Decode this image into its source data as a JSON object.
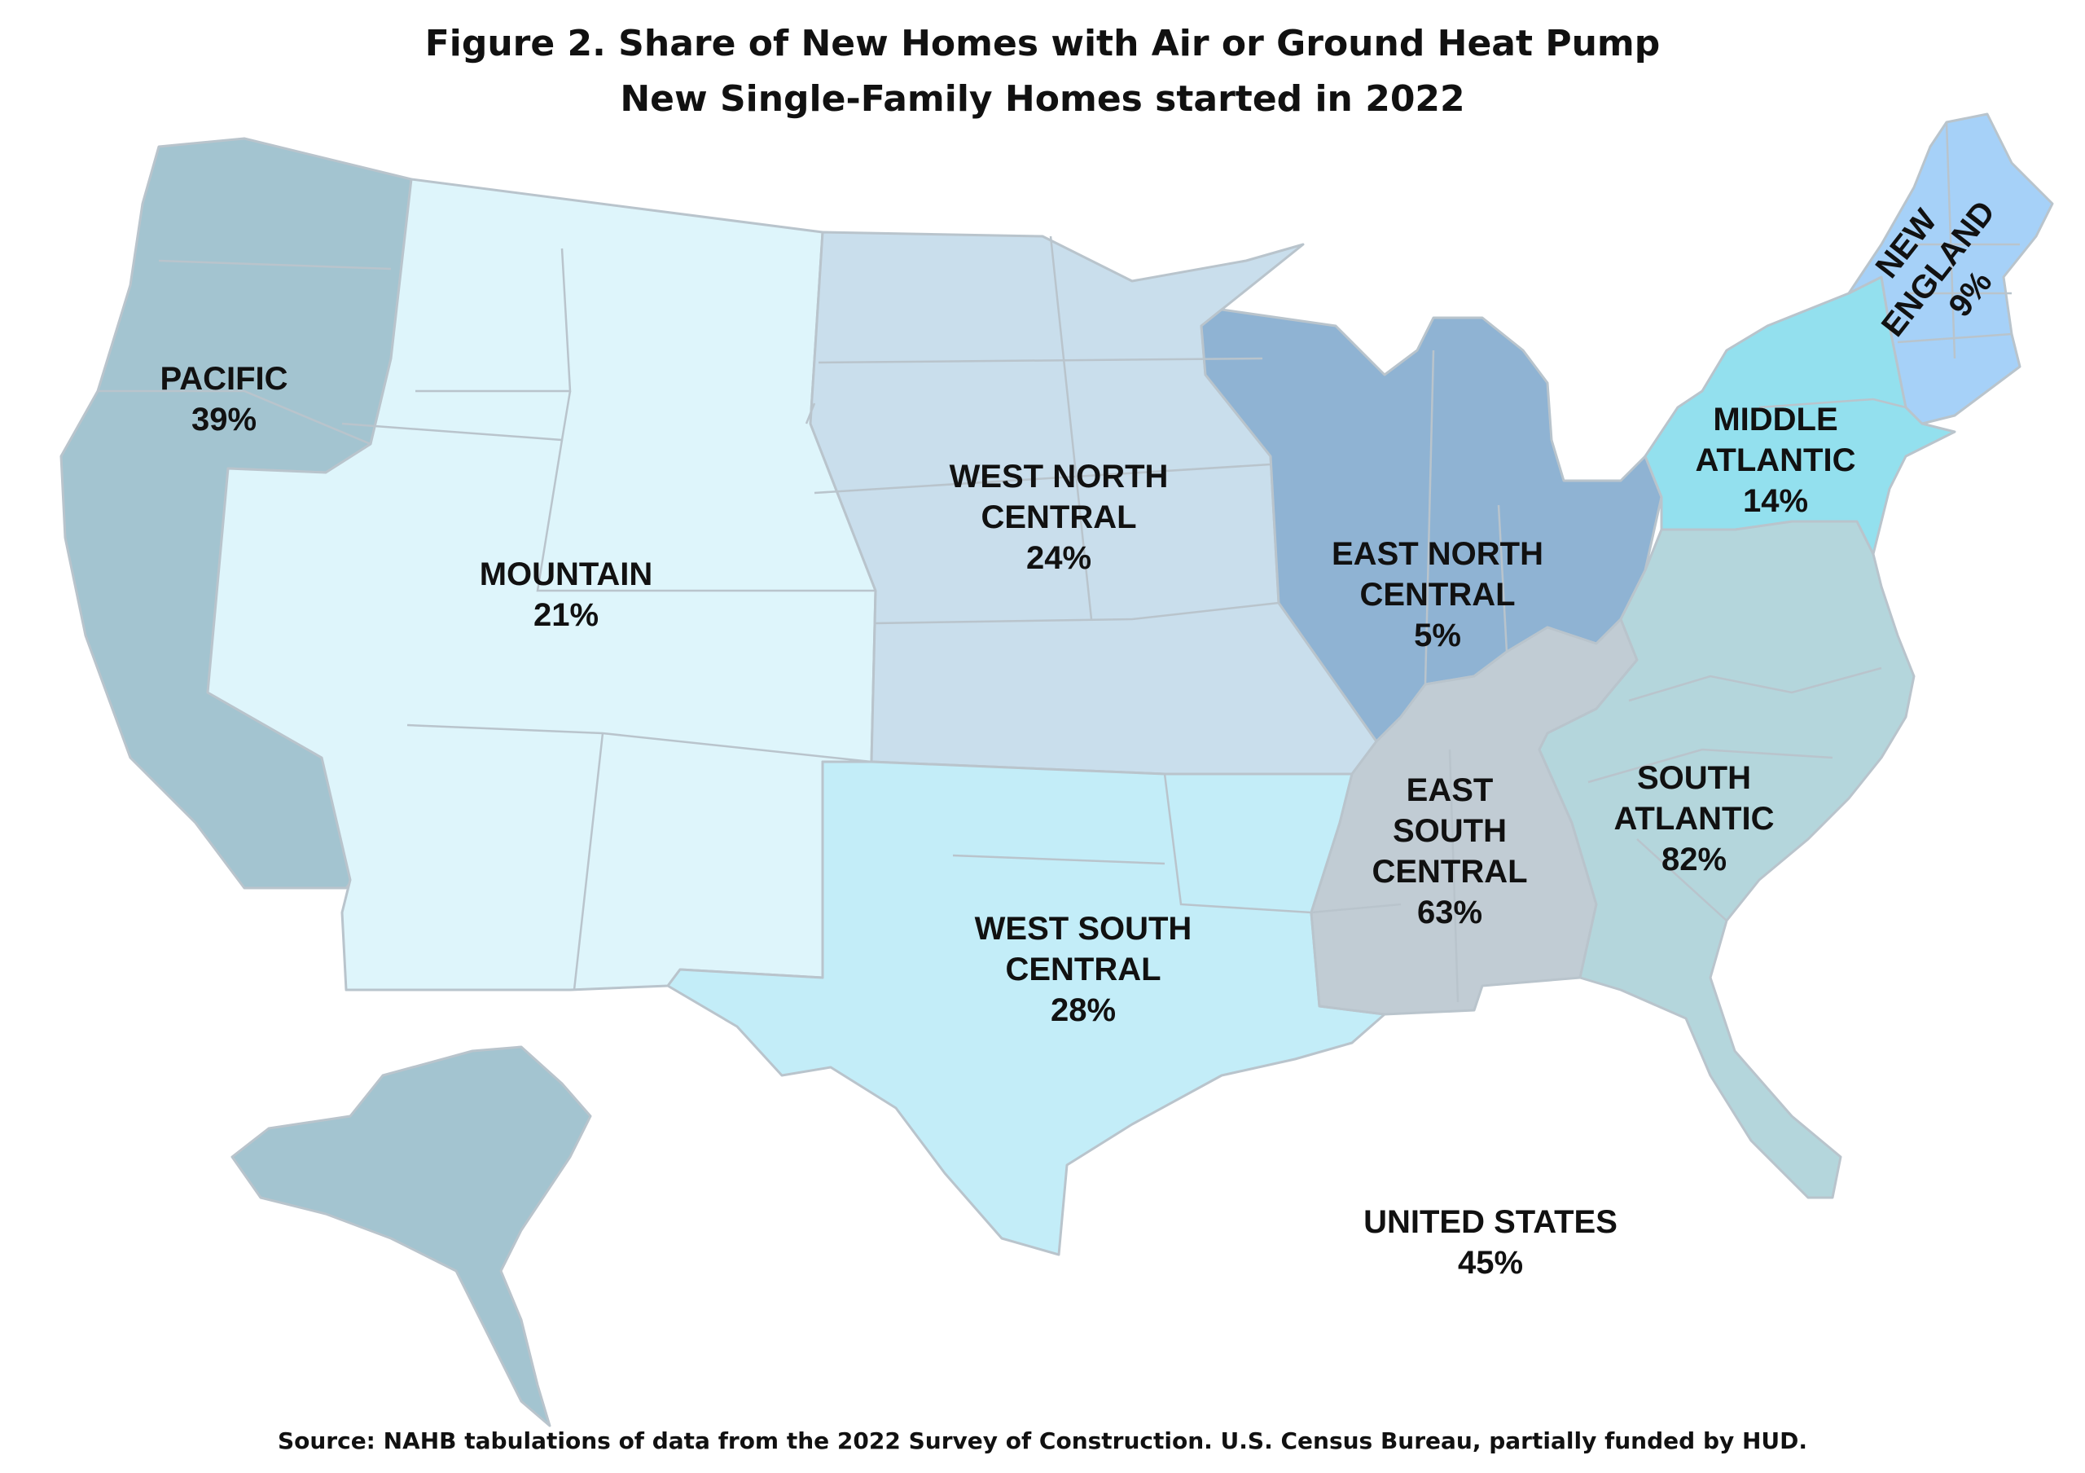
{
  "title_line1": "Figure 2. Share of New Homes with Air or Ground Heat Pump",
  "title_line2": "New Single-Family Homes started in 2022",
  "source": "Source: NAHB tabulations of data from the 2022 Survey of Construction. U.S. Census Bureau, partially funded by HUD.",
  "regions": {
    "pacific": {
      "name": "PACIFIC",
      "value": "39%",
      "color": "#a3c4d0"
    },
    "mountain": {
      "name": "MOUNTAIN",
      "value": "21%",
      "color": "#def5fb"
    },
    "west_north_central": {
      "name_line1": "WEST NORTH",
      "name_line2": "CENTRAL",
      "value": "24%",
      "color": "#c9deec"
    },
    "west_south_central": {
      "name_line1": "WEST SOUTH",
      "name_line2": "CENTRAL",
      "value": "28%",
      "color": "#c3edf8"
    },
    "east_north_central": {
      "name_line1": "EAST NORTH",
      "name_line2": "CENTRAL",
      "value": "5%",
      "color": "#8fb3d3"
    },
    "east_south_central": {
      "name_line1": "EAST",
      "name_line2": "SOUTH",
      "name_line3": "CENTRAL",
      "value": "63%",
      "color": "#c1ccd4"
    },
    "south_atlantic": {
      "name_line1": "SOUTH",
      "name_line2": "ATLANTIC",
      "value": "82%",
      "color": "#b4d6dc"
    },
    "middle_atlantic": {
      "name_line1": "MIDDLE",
      "name_line2": "ATLANTIC",
      "value": "14%",
      "color": "#93e0ee"
    },
    "new_england": {
      "name_line1": "NEW",
      "name_line2": "ENGLAND",
      "value": "9%",
      "color": "#a6d1f8"
    }
  },
  "united_states": {
    "name": "UNITED STATES",
    "value": "45%"
  }
}
